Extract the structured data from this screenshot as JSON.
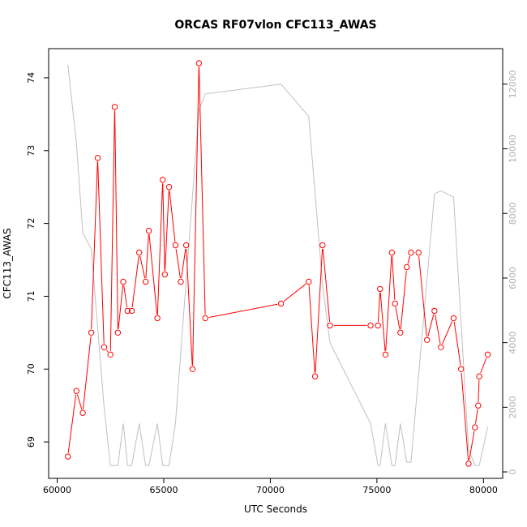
{
  "chart_data": {
    "type": "line",
    "title": "ORCAS RF07vlon CFC113_AWAS",
    "xlabel": "UTC Seconds",
    "ylabel": "CFC113_AWAS",
    "x_ticks": [
      60000,
      65000,
      70000,
      75000,
      80000
    ],
    "y_ticks": [
      69,
      70,
      71,
      72,
      73,
      74
    ],
    "y2_ticks": [
      0,
      2000,
      4000,
      6000,
      8000,
      10000,
      12000
    ],
    "xlim": [
      59600,
      80900
    ],
    "ylim": [
      68.5,
      74.4
    ],
    "y2lim": [
      -200,
      13100
    ],
    "grid": false,
    "colors": {
      "primary": "#ff0000",
      "secondary": "#c0c0c0",
      "axis": "#000000",
      "secondary_ticks": "#b0b0b0"
    },
    "series": [
      {
        "axis": "left",
        "x": [
          60500,
          60900,
          61200,
          61600,
          61900,
          62200,
          62500,
          62700,
          62850,
          63100,
          63300,
          63500,
          63850,
          64150,
          64300,
          64700,
          64950,
          65050,
          65250,
          65550,
          65800,
          66050,
          66350,
          66650,
          66950,
          70500,
          71800,
          72100,
          72450,
          72800,
          74700,
          75050,
          75150,
          75400,
          75700,
          75850,
          76100,
          76400,
          76600,
          76950,
          77350,
          77700,
          78000,
          78600,
          78950,
          79300,
          79600,
          79750,
          79800,
          80200
        ],
        "y": [
          68.8,
          69.7,
          69.4,
          70.5,
          72.9,
          70.3,
          70.2,
          73.6,
          70.5,
          71.2,
          70.8,
          70.8,
          71.6,
          71.2,
          71.9,
          70.7,
          72.6,
          71.3,
          72.5,
          71.7,
          71.2,
          71.7,
          70.0,
          74.2,
          70.7,
          70.9,
          71.2,
          69.9,
          71.7,
          70.6,
          70.6,
          70.6,
          71.1,
          70.2,
          71.6,
          70.9,
          70.5,
          71.4,
          71.6,
          71.6,
          70.4,
          70.8,
          70.3,
          70.7,
          70.0,
          68.7,
          69.2,
          69.5,
          69.9,
          70.2
        ]
      },
      {
        "axis": "right",
        "x": [
          60500,
          60900,
          61200,
          61600,
          62200,
          62500,
          62700,
          62850,
          63100,
          63300,
          63500,
          63850,
          64150,
          64300,
          64700,
          64950,
          65250,
          65550,
          66650,
          66950,
          70500,
          71800,
          72450,
          72800,
          74700,
          75050,
          75150,
          75400,
          75700,
          75850,
          76100,
          76400,
          76600,
          77700,
          78000,
          78600,
          79300,
          79600,
          79800,
          80200
        ],
        "y": [
          12600,
          10200,
          7400,
          6900,
          2000,
          200,
          200,
          200,
          1500,
          200,
          200,
          1500,
          200,
          200,
          1500,
          200,
          200,
          1500,
          11200,
          11700,
          12000,
          11000,
          5800,
          4000,
          1500,
          200,
          200,
          1500,
          200,
          200,
          1500,
          300,
          300,
          8600,
          8700,
          8500,
          700,
          200,
          200,
          1400
        ]
      }
    ]
  }
}
